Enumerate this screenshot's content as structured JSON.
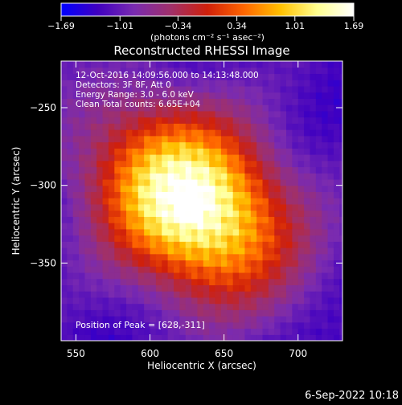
{
  "colorbar": {
    "ticks": [
      "-1.69",
      "-1.01",
      "-0.34",
      "0.34",
      "1.01",
      "1.69"
    ],
    "unit_label": "(photons cm⁻² s⁻¹ asec⁻²)"
  },
  "footer": {
    "timestamp": "6-Sep-2022 10:18"
  },
  "chart_data": {
    "type": "heatmap",
    "title": "Reconstructed RHESSI Image",
    "xlabel": "Heliocentric X (arcsec)",
    "ylabel": "Heliocentric Y (arcsec)",
    "xlim": [
      540,
      730
    ],
    "ylim": [
      -400,
      -220
    ],
    "xticks": [
      550,
      600,
      650,
      700
    ],
    "yticks": [
      -250,
      -300,
      -350
    ],
    "zlim": [
      -1.69,
      1.69
    ],
    "colormap": "rhessi-fire",
    "annotations": [
      "12-Oct-2016 14:09:56.000 to 14:13:48.000",
      "Detectors: 3F 8F, Att 0",
      "Energy Range: 3.0 - 6.0 keV",
      "Clean     Total counts: 6.65E+04"
    ],
    "peak_label": "Position of Peak = [628,-311]",
    "peak": {
      "x": 628,
      "y": -311,
      "value": 1.69
    },
    "source": {
      "sigma_major": 48,
      "sigma_minor": 36,
      "angle_deg": -35,
      "amplitude": 1.55
    }
  },
  "colors": {
    "background": "#000000",
    "foreground": "#ffffff",
    "colormap_stops": [
      "#0000ff",
      "#4000c0",
      "#7a2bb0",
      "#a0306a",
      "#d0200a",
      "#ff6600",
      "#ffc000",
      "#ffff90",
      "#ffffff"
    ]
  }
}
